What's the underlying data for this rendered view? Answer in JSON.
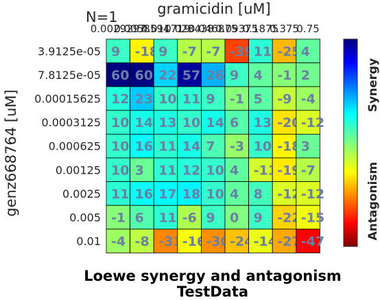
{
  "chart_data": {
    "type": "heatmap",
    "title": "Loewe synergy and antagonism",
    "subtitle": "TestData",
    "annotation": "N=1",
    "xlabel": "gramicidin [uM]",
    "ylabel": "genz668764 [uM]",
    "x_ticks": [
      "0.0029297",
      "0.0058594",
      "0.011719",
      "0.023438",
      "0.046875",
      "0.09375",
      "0.1875",
      "0.375",
      "0.75"
    ],
    "y_ticks": [
      "3.9125e-05",
      "7.8125e-05",
      "0.00015625",
      "0.0003125",
      "0.000625",
      "0.00125",
      "0.0025",
      "0.005",
      "0.01"
    ],
    "values": [
      [
        9,
        -18,
        9,
        -7,
        -7,
        -39,
        11,
        -25,
        4
      ],
      [
        60,
        60,
        22,
        57,
        26,
        9,
        4,
        -1,
        2
      ],
      [
        12,
        23,
        10,
        11,
        9,
        -1,
        5,
        -9,
        -4
      ],
      [
        10,
        14,
        13,
        10,
        14,
        6,
        13,
        -20,
        -12
      ],
      [
        10,
        16,
        11,
        14,
        7,
        -3,
        10,
        -18,
        3
      ],
      [
        10,
        3,
        11,
        12,
        10,
        4,
        -11,
        -19,
        -7
      ],
      [
        11,
        16,
        17,
        18,
        10,
        4,
        8,
        -12,
        -12
      ],
      [
        -1,
        6,
        11,
        -6,
        9,
        0,
        9,
        -22,
        -15
      ],
      [
        -4,
        -8,
        -31,
        -16,
        -30,
        -24,
        -14,
        -27,
        -47
      ]
    ],
    "color_range": [
      -60,
      60
    ],
    "colormap": "jet",
    "colorbar_labels": {
      "top": "Synergy",
      "bottom": "Antagonism"
    },
    "grid": true
  }
}
